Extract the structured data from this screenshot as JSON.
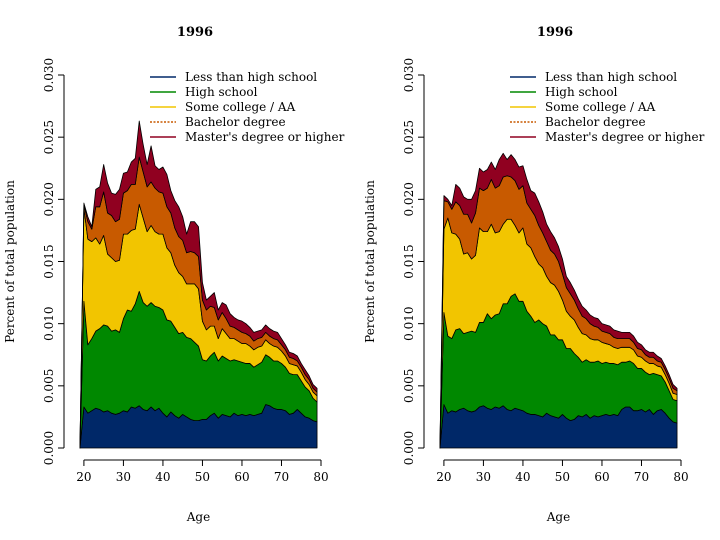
{
  "chart_data": [
    {
      "type": "area",
      "stacked": true,
      "title": "1996",
      "xlabel": "Age",
      "ylabel": "Percent of total population",
      "xlim": [
        18,
        80
      ],
      "ylim": [
        0,
        0.03
      ],
      "xticks": [
        "20",
        "30",
        "40",
        "50",
        "60",
        "70",
        "80"
      ],
      "yticks": [
        "0.000",
        "0.005",
        "0.010",
        "0.015",
        "0.020",
        "0.025",
        "0.030"
      ],
      "legend_position": "top-right",
      "x": [
        19,
        20,
        21,
        22,
        23,
        24,
        25,
        26,
        27,
        28,
        29,
        30,
        31,
        32,
        33,
        34,
        35,
        36,
        37,
        38,
        39,
        40,
        41,
        42,
        43,
        44,
        45,
        46,
        47,
        48,
        49,
        50,
        51,
        52,
        53,
        54,
        55,
        56,
        57,
        58,
        59,
        60,
        61,
        62,
        63,
        64,
        65,
        66,
        67,
        68,
        69,
        70,
        71,
        72,
        73,
        74,
        75,
        76,
        77,
        78,
        79
      ],
      "series": [
        {
          "name": "Less than high school",
          "color": "#002868",
          "values": [
            0.0,
            0.0033,
            0.0028,
            0.003,
            0.0032,
            0.0031,
            0.0029,
            0.003,
            0.0028,
            0.0027,
            0.0028,
            0.003,
            0.0029,
            0.0033,
            0.0032,
            0.0034,
            0.0031,
            0.003,
            0.0033,
            0.003,
            0.0032,
            0.0028,
            0.0025,
            0.0029,
            0.0026,
            0.0024,
            0.0027,
            0.0025,
            0.0023,
            0.0022,
            0.0022,
            0.0023,
            0.0023,
            0.0026,
            0.0028,
            0.0024,
            0.0027,
            0.0026,
            0.0025,
            0.0028,
            0.0026,
            0.0027,
            0.0026,
            0.0027,
            0.0026,
            0.0027,
            0.0028,
            0.0035,
            0.0034,
            0.0032,
            0.0031,
            0.0031,
            0.003,
            0.0027,
            0.0028,
            0.0031,
            0.0028,
            0.0025,
            0.0024,
            0.0022,
            0.0021
          ]
        },
        {
          "name": "High school",
          "color": "#008800",
          "values": [
            0.0,
            0.0085,
            0.0055,
            0.0058,
            0.0062,
            0.0065,
            0.007,
            0.0068,
            0.0066,
            0.0068,
            0.0065,
            0.0074,
            0.0082,
            0.0077,
            0.0084,
            0.0092,
            0.0086,
            0.0084,
            0.0084,
            0.0084,
            0.0081,
            0.0083,
            0.0078,
            0.0073,
            0.0071,
            0.0068,
            0.0066,
            0.0064,
            0.0065,
            0.0063,
            0.006,
            0.0048,
            0.0047,
            0.0048,
            0.0049,
            0.0046,
            0.0047,
            0.0046,
            0.0045,
            0.0043,
            0.0044,
            0.0042,
            0.0042,
            0.0041,
            0.0039,
            0.004,
            0.0041,
            0.004,
            0.0039,
            0.0038,
            0.0039,
            0.0037,
            0.0035,
            0.0033,
            0.0031,
            0.0028,
            0.0026,
            0.0024,
            0.0022,
            0.0018,
            0.0016
          ]
        },
        {
          "name": "Some college / AA",
          "color": "#f2c500",
          "values": [
            0.0,
            0.0075,
            0.0085,
            0.0078,
            0.0075,
            0.0068,
            0.0072,
            0.0058,
            0.0059,
            0.0055,
            0.0058,
            0.0068,
            0.0061,
            0.0065,
            0.006,
            0.007,
            0.0068,
            0.006,
            0.0062,
            0.006,
            0.0059,
            0.0061,
            0.0058,
            0.0055,
            0.005,
            0.0049,
            0.0045,
            0.0043,
            0.0044,
            0.0047,
            0.0046,
            0.0031,
            0.0025,
            0.0024,
            0.0021,
            0.0018,
            0.0022,
            0.002,
            0.0018,
            0.0017,
            0.0016,
            0.0015,
            0.0016,
            0.0014,
            0.0014,
            0.0014,
            0.0013,
            0.0012,
            0.0011,
            0.0012,
            0.0011,
            0.001,
            0.0009,
            0.0008,
            0.0008,
            0.0007,
            0.0007,
            0.0006,
            0.0005,
            0.0005,
            0.0005
          ]
        },
        {
          "name": "Bachelor degree",
          "color": "#c85a00",
          "values": [
            0.0,
            0.0003,
            0.0014,
            0.001,
            0.0025,
            0.003,
            0.0035,
            0.0033,
            0.0034,
            0.0032,
            0.0033,
            0.0033,
            0.0035,
            0.0037,
            0.0036,
            0.0038,
            0.0037,
            0.0036,
            0.0035,
            0.0035,
            0.0034,
            0.0033,
            0.0033,
            0.0032,
            0.003,
            0.0029,
            0.0029,
            0.0025,
            0.0026,
            0.0025,
            0.0026,
            0.0017,
            0.0016,
            0.0016,
            0.0015,
            0.0015,
            0.0013,
            0.0012,
            0.001,
            0.0009,
            0.0009,
            0.0009,
            0.0008,
            0.0008,
            0.0007,
            0.0007,
            0.0007,
            0.0006,
            0.0006,
            0.0006,
            0.0006,
            0.0005,
            0.0005,
            0.0005,
            0.0005,
            0.0004,
            0.0004,
            0.0004,
            0.0004,
            0.0003,
            0.0003
          ]
        },
        {
          "name": "Master's degree or higher",
          "color": "#900020",
          "values": [
            0.0,
            0.0001,
            0.0004,
            0.0002,
            0.0014,
            0.0016,
            0.0022,
            0.0024,
            0.0018,
            0.0022,
            0.0024,
            0.0016,
            0.0015,
            0.0018,
            0.0021,
            0.0029,
            0.0022,
            0.0018,
            0.0029,
            0.0018,
            0.0018,
            0.0021,
            0.0026,
            0.0018,
            0.0022,
            0.0024,
            0.0019,
            0.0015,
            0.0024,
            0.0025,
            0.0024,
            0.0014,
            0.0008,
            0.0008,
            0.0012,
            0.0008,
            0.0008,
            0.0011,
            0.001,
            0.0008,
            0.0008,
            0.0009,
            0.0008,
            0.0007,
            0.0007,
            0.0006,
            0.0006,
            0.0006,
            0.0006,
            0.0006,
            0.0006,
            0.0005,
            0.0004,
            0.0004,
            0.0004,
            0.0004,
            0.0003,
            0.0004,
            0.0003,
            0.0003,
            0.0003
          ]
        }
      ]
    },
    {
      "type": "area",
      "stacked": true,
      "title": "1996",
      "xlabel": "Age",
      "ylabel": "Percent of total population",
      "xlim": [
        18,
        80
      ],
      "ylim": [
        0,
        0.03
      ],
      "xticks": [
        "20",
        "30",
        "40",
        "50",
        "60",
        "70",
        "80"
      ],
      "yticks": [
        "0.000",
        "0.005",
        "0.010",
        "0.015",
        "0.020",
        "0.025",
        "0.030"
      ],
      "legend_position": "top-right",
      "x": [
        19,
        20,
        21,
        22,
        23,
        24,
        25,
        26,
        27,
        28,
        29,
        30,
        31,
        32,
        33,
        34,
        35,
        36,
        37,
        38,
        39,
        40,
        41,
        42,
        43,
        44,
        45,
        46,
        47,
        48,
        49,
        50,
        51,
        52,
        53,
        54,
        55,
        56,
        57,
        58,
        59,
        60,
        61,
        62,
        63,
        64,
        65,
        66,
        67,
        68,
        69,
        70,
        71,
        72,
        73,
        74,
        75,
        76,
        77,
        78,
        79
      ],
      "series": [
        {
          "name": "Less than high school",
          "color": "#002868",
          "values": [
            0.0,
            0.0035,
            0.0028,
            0.003,
            0.0029,
            0.0031,
            0.0032,
            0.003,
            0.0029,
            0.003,
            0.0033,
            0.0034,
            0.0032,
            0.0031,
            0.0033,
            0.0032,
            0.0034,
            0.0031,
            0.003,
            0.0032,
            0.0031,
            0.003,
            0.0028,
            0.0027,
            0.0027,
            0.0026,
            0.0025,
            0.0028,
            0.0026,
            0.0025,
            0.0024,
            0.0027,
            0.0024,
            0.0022,
            0.0023,
            0.0026,
            0.0025,
            0.0027,
            0.0024,
            0.0026,
            0.0025,
            0.0026,
            0.0027,
            0.0026,
            0.0027,
            0.0026,
            0.0031,
            0.0033,
            0.0033,
            0.003,
            0.003,
            0.0031,
            0.0029,
            0.0031,
            0.0027,
            0.003,
            0.0031,
            0.0028,
            0.0024,
            0.0021,
            0.002
          ]
        },
        {
          "name": "High school",
          "color": "#008800",
          "values": [
            0.0,
            0.0074,
            0.0062,
            0.0058,
            0.0066,
            0.0065,
            0.006,
            0.0063,
            0.0065,
            0.0063,
            0.0068,
            0.0067,
            0.0076,
            0.0073,
            0.0074,
            0.0076,
            0.0082,
            0.0085,
            0.0092,
            0.0092,
            0.0087,
            0.0088,
            0.0082,
            0.0079,
            0.0074,
            0.0077,
            0.0075,
            0.007,
            0.0065,
            0.0066,
            0.0063,
            0.006,
            0.0056,
            0.0058,
            0.0053,
            0.0047,
            0.0044,
            0.0044,
            0.0045,
            0.0043,
            0.0045,
            0.0042,
            0.0042,
            0.0042,
            0.0041,
            0.0041,
            0.0038,
            0.0036,
            0.0037,
            0.0038,
            0.0034,
            0.0033,
            0.0032,
            0.0028,
            0.0033,
            0.0029,
            0.0027,
            0.0025,
            0.0022,
            0.0018,
            0.0018
          ]
        },
        {
          "name": "Some college / AA",
          "color": "#f2c500",
          "values": [
            0.0,
            0.0067,
            0.0095,
            0.0085,
            0.0077,
            0.0072,
            0.0064,
            0.0064,
            0.0058,
            0.0062,
            0.0076,
            0.0073,
            0.0066,
            0.0076,
            0.0066,
            0.0066,
            0.0064,
            0.0068,
            0.0062,
            0.0055,
            0.0055,
            0.0059,
            0.0054,
            0.0055,
            0.0053,
            0.0045,
            0.0045,
            0.004,
            0.0042,
            0.004,
            0.0039,
            0.0032,
            0.003,
            0.0026,
            0.0027,
            0.0024,
            0.0023,
            0.002,
            0.0019,
            0.0018,
            0.0017,
            0.0017,
            0.0015,
            0.0015,
            0.0013,
            0.0013,
            0.0012,
            0.0012,
            0.0011,
            0.0011,
            0.001,
            0.0009,
            0.0009,
            0.0009,
            0.0008,
            0.0007,
            0.0007,
            0.0006,
            0.0006,
            0.0005,
            0.0005
          ]
        },
        {
          "name": "Bachelor degree",
          "color": "#c85a00",
          "values": [
            0.0,
            0.0023,
            0.0013,
            0.0019,
            0.0026,
            0.0027,
            0.0032,
            0.0031,
            0.0029,
            0.0034,
            0.0032,
            0.0033,
            0.0035,
            0.0036,
            0.0036,
            0.0037,
            0.0038,
            0.0035,
            0.0034,
            0.0036,
            0.0035,
            0.0034,
            0.0033,
            0.0031,
            0.0033,
            0.0031,
            0.0028,
            0.0028,
            0.0026,
            0.0025,
            0.0024,
            0.0021,
            0.0019,
            0.0018,
            0.0016,
            0.0015,
            0.0014,
            0.0013,
            0.0012,
            0.0011,
            0.001,
            0.0009,
            0.0009,
            0.0009,
            0.0008,
            0.0008,
            0.0007,
            0.0007,
            0.0007,
            0.0006,
            0.0006,
            0.0006,
            0.0005,
            0.0005,
            0.0005,
            0.0004,
            0.0004,
            0.0004,
            0.0004,
            0.0004,
            0.0003
          ]
        },
        {
          "name": "Master's degree or higher",
          "color": "#900020",
          "values": [
            0.0,
            0.0004,
            0.0002,
            0.0003,
            0.0014,
            0.0014,
            0.0014,
            0.0012,
            0.0019,
            0.0018,
            0.0016,
            0.0015,
            0.0015,
            0.0014,
            0.0015,
            0.0021,
            0.0019,
            0.0013,
            0.0018,
            0.0017,
            0.0018,
            0.0016,
            0.0019,
            0.0015,
            0.0018,
            0.0019,
            0.0017,
            0.0014,
            0.0015,
            0.0013,
            0.0012,
            0.0012,
            0.0009,
            0.0009,
            0.0008,
            0.0008,
            0.0008,
            0.0007,
            0.0007,
            0.0007,
            0.0007,
            0.0006,
            0.0006,
            0.0006,
            0.0006,
            0.0006,
            0.0005,
            0.0005,
            0.0005,
            0.0005,
            0.0005,
            0.0004,
            0.0004,
            0.0004,
            0.0004,
            0.0004,
            0.0003,
            0.0003,
            0.0003,
            0.0003,
            0.0002
          ]
        }
      ]
    }
  ]
}
